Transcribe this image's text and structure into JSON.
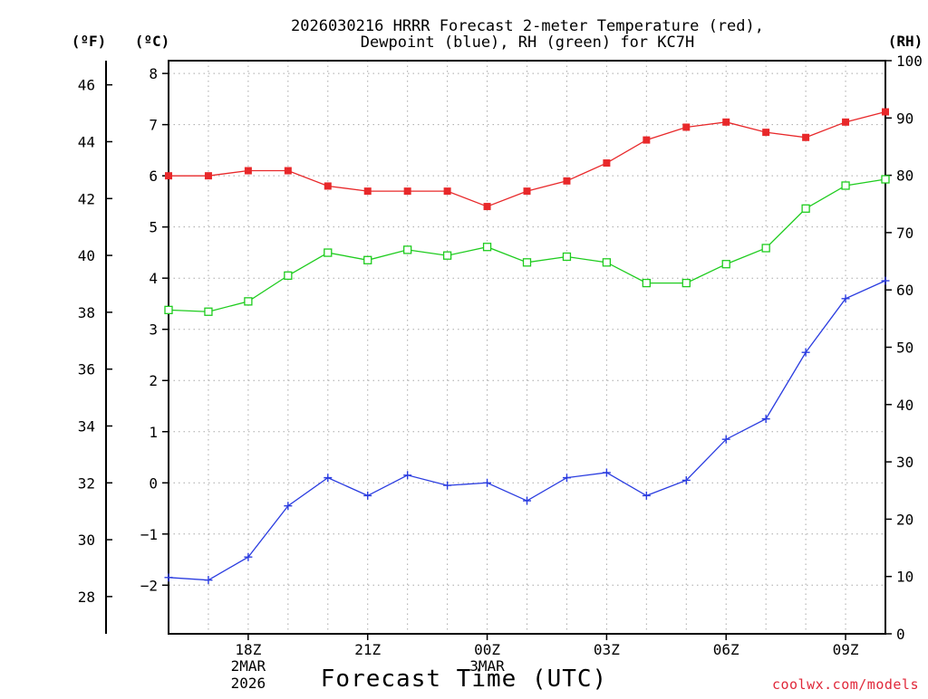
{
  "chart_data": {
    "type": "line",
    "title_line1": "2026030216 HRRR Forecast 2-meter Temperature (red),",
    "title_line2": "Dewpoint (blue), RH (green) for KC7H",
    "xlabel": "Forecast Time (UTC)",
    "credit": "coolwx.com/models",
    "unit_left_outer": "(ºF)",
    "unit_left_inner": "(ºC)",
    "unit_right": "(RH)",
    "x_hours": [
      16,
      17,
      18,
      19,
      20,
      21,
      22,
      23,
      24,
      25,
      26,
      27,
      28,
      29,
      30,
      31,
      32,
      33,
      34
    ],
    "xlim": [
      16,
      34
    ],
    "x_ticks": [
      {
        "hour": 18,
        "label": "18Z",
        "sub1": "2MAR",
        "sub2": "2026"
      },
      {
        "hour": 21,
        "label": "21Z",
        "sub1": "",
        "sub2": ""
      },
      {
        "hour": 24,
        "label": "00Z",
        "sub1": "3MAR",
        "sub2": ""
      },
      {
        "hour": 27,
        "label": "03Z",
        "sub1": "",
        "sub2": ""
      },
      {
        "hour": 30,
        "label": "06Z",
        "sub1": "",
        "sub2": ""
      },
      {
        "hour": 33,
        "label": "09Z",
        "sub1": "",
        "sub2": ""
      }
    ],
    "celsius_axis": {
      "range": [
        -2.95,
        8.25
      ],
      "ticks": [
        -2,
        -1,
        0,
        1,
        2,
        3,
        4,
        5,
        6,
        7,
        8
      ]
    },
    "fahrenheit_axis": {
      "ticks": [
        28,
        30,
        32,
        34,
        36,
        38,
        40,
        42,
        44,
        46
      ]
    },
    "rh_axis": {
      "range": [
        0,
        100
      ],
      "ticks": [
        0,
        10,
        20,
        30,
        40,
        50,
        60,
        70,
        80,
        90,
        100
      ]
    },
    "colors": {
      "temperature": "#e8282a",
      "dewpoint": "#2a3ce0",
      "rh": "#1ecc1e",
      "grid": "#a8a8a8"
    },
    "series": [
      {
        "name": "Temperature",
        "unit": "C",
        "color": "#e8282a",
        "marker": "filled-square",
        "values": [
          6.0,
          6.0,
          6.1,
          6.1,
          5.8,
          5.7,
          5.7,
          5.7,
          5.4,
          5.7,
          5.9,
          6.25,
          6.7,
          6.95,
          7.05,
          6.85,
          6.75,
          7.05,
          7.25
        ]
      },
      {
        "name": "Dewpoint",
        "unit": "C",
        "color": "#2a3ce0",
        "marker": "plus",
        "values": [
          -1.85,
          -1.9,
          -1.45,
          -0.45,
          0.1,
          -0.25,
          0.15,
          -0.05,
          0.0,
          -0.35,
          0.1,
          0.2,
          -0.25,
          0.05,
          0.85,
          1.25,
          2.55,
          3.6,
          3.95
        ]
      },
      {
        "name": "RH",
        "unit": "%",
        "color": "#1ecc1e",
        "marker": "open-square",
        "values": [
          56.5,
          56.2,
          58.0,
          62.5,
          66.5,
          65.2,
          67.0,
          66.0,
          67.5,
          64.8,
          65.8,
          64.8,
          61.2,
          61.2,
          64.5,
          67.3,
          74.2,
          78.2,
          79.3
        ]
      }
    ]
  }
}
